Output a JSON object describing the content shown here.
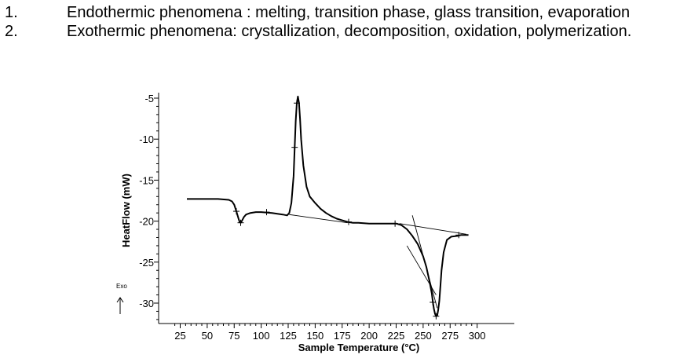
{
  "list": [
    {
      "number": "1.",
      "text": "Endothermic phenomena : melting, transition phase, glass transition, evaporation"
    },
    {
      "number": "2.",
      "text": "Exothermic phenomena: crystallization, decomposition, oxidation, polymerization."
    }
  ],
  "chart_data": {
    "type": "line",
    "xlabel": "Sample Temperature (°C)",
    "ylabel": "HeatFlow (mW)",
    "exo_label": "Exo",
    "xlim": [
      20,
      302
    ],
    "ylim": [
      -32.5,
      -4.5
    ],
    "xticks": [
      25,
      50,
      75,
      100,
      125,
      150,
      175,
      200,
      225,
      250,
      275,
      300
    ],
    "yticks": [
      -5,
      -10,
      -15,
      -20,
      -25,
      -30
    ],
    "grid": false,
    "series": [
      {
        "x": [
          0,
          15,
          30,
          45,
          60,
          70,
          73,
          75,
          77,
          79,
          80,
          81,
          82,
          84,
          86,
          90,
          95,
          100,
          110,
          120,
          124,
          126,
          128,
          130,
          131,
          132,
          133,
          134,
          135,
          136,
          137,
          139,
          142,
          145,
          150,
          155,
          160,
          165,
          170,
          175,
          180,
          185,
          190,
          200,
          210,
          220,
          225,
          230,
          235,
          240,
          245,
          250,
          253,
          256,
          258,
          259,
          260,
          261,
          262,
          263,
          264,
          265,
          266,
          267,
          269,
          272,
          276,
          282,
          285,
          290,
          292
        ],
        "y": [
          -17.3,
          -17.3,
          -17.3,
          -17.3,
          -17.3,
          -17.4,
          -17.6,
          -18.0,
          -18.8,
          -19.7,
          -20.1,
          -20.2,
          -20.0,
          -19.5,
          -19.2,
          -19.0,
          -18.9,
          -18.9,
          -19.0,
          -19.2,
          -19.3,
          -19.0,
          -17.8,
          -14.5,
          -11.0,
          -7.8,
          -5.6,
          -4.8,
          -5.6,
          -7.5,
          -10.0,
          -13.2,
          -15.8,
          -17.0,
          -17.8,
          -18.5,
          -19.0,
          -19.4,
          -19.7,
          -19.9,
          -20.1,
          -20.2,
          -20.2,
          -20.3,
          -20.3,
          -20.3,
          -20.3,
          -20.5,
          -21.0,
          -21.8,
          -22.8,
          -24.3,
          -25.6,
          -27.4,
          -28.8,
          -29.9,
          -30.7,
          -31.3,
          -31.6,
          -31.5,
          -30.8,
          -29.7,
          -27.9,
          -26.0,
          -23.8,
          -22.3,
          -21.9,
          -21.8,
          -21.7,
          -21.7,
          -21.7
        ]
      }
    ],
    "baselines": [
      {
        "x": [
          126,
          180
        ],
        "y": [
          -19.2,
          -20.2
        ]
      },
      {
        "x": [
          228,
          290
        ],
        "y": [
          -20.3,
          -21.6
        ]
      },
      {
        "x": [
          240,
          263
        ],
        "y": [
          -19.3,
          -30.6
        ]
      },
      {
        "x": [
          235,
          262
        ],
        "y": [
          -23.0,
          -29.0
        ]
      }
    ],
    "markers": [
      {
        "x": 77,
        "y": -18.8
      },
      {
        "x": 81,
        "y": -20.2
      },
      {
        "x": 105,
        "y": -18.9
      },
      {
        "x": 131,
        "y": -11.0
      },
      {
        "x": 133,
        "y": -5.6
      },
      {
        "x": 181,
        "y": -20.1
      },
      {
        "x": 224,
        "y": -20.3
      },
      {
        "x": 259,
        "y": -29.9
      },
      {
        "x": 262,
        "y": -31.6
      },
      {
        "x": 283,
        "y": -21.7
      }
    ]
  }
}
